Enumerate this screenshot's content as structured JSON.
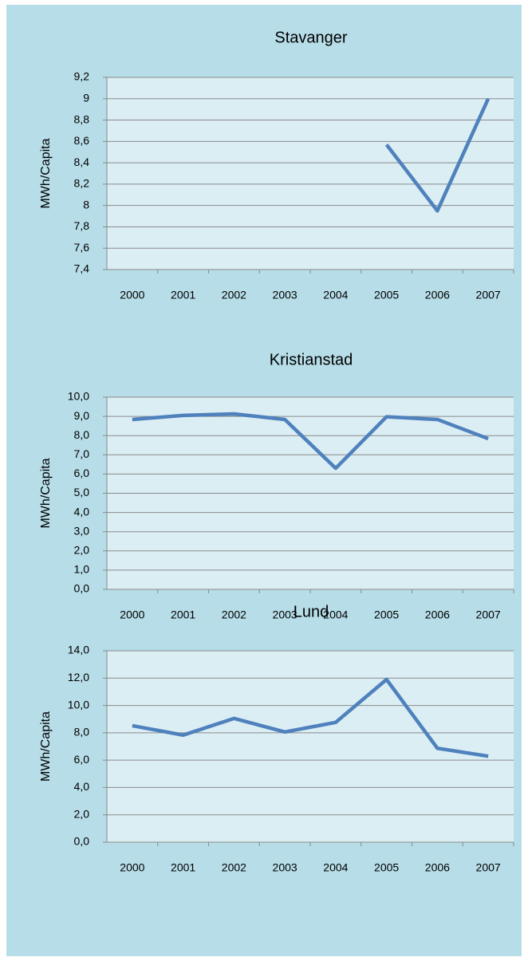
{
  "chart_data": [
    {
      "type": "line",
      "title": "Stavanger",
      "y_label": "MWh/Capita",
      "color": "#4f81bd",
      "grid": true,
      "categories": [
        "2000",
        "2001",
        "2002",
        "2003",
        "2004",
        "2005",
        "2006",
        "2007"
      ],
      "values": [
        null,
        null,
        null,
        null,
        null,
        8.57,
        7.95,
        9.0
      ],
      "ylim": [
        7.4,
        9.2
      ],
      "yticks": [
        {
          "value": 7.4,
          "label": "7,4"
        },
        {
          "value": 7.6,
          "label": "7,6"
        },
        {
          "value": 7.8,
          "label": "7,8"
        },
        8,
        {
          "value": 8.2,
          "label": "8,2"
        },
        {
          "value": 8.4,
          "label": "8,4"
        },
        {
          "value": 8.6,
          "label": "8,6"
        },
        {
          "value": 8.8,
          "label": "8,8"
        },
        9,
        {
          "value": 9.2,
          "label": "9,2"
        }
      ]
    },
    {
      "type": "line",
      "title": "Kristianstad",
      "y_label": "MWh/Capita",
      "color": "#4f81bd",
      "grid": true,
      "categories": [
        "2000",
        "2001",
        "2002",
        "2003",
        "2004",
        "2005",
        "2006",
        "2007"
      ],
      "values": [
        8.84,
        9.05,
        9.13,
        8.84,
        6.3,
        8.98,
        8.84,
        7.84
      ],
      "ylim": [
        0,
        10
      ],
      "yticks": [
        {
          "value": 0,
          "label": "0,0"
        },
        {
          "value": 1,
          "label": "1,0"
        },
        {
          "value": 2,
          "label": "2,0"
        },
        {
          "value": 3,
          "label": "3,0"
        },
        {
          "value": 4,
          "label": "4,0"
        },
        {
          "value": 5,
          "label": "5,0"
        },
        {
          "value": 6,
          "label": "6,0"
        },
        {
          "value": 7,
          "label": "7,0"
        },
        {
          "value": 8,
          "label": "8,0"
        },
        {
          "value": 9,
          "label": "9,0"
        },
        {
          "value": 10,
          "label": "10,0"
        }
      ]
    },
    {
      "type": "line",
      "title": "Lund",
      "y_label": "MWh/Capita",
      "color": "#4f81bd",
      "grid": true,
      "categories": [
        "2000",
        "2001",
        "2002",
        "2003",
        "2004",
        "2005",
        "2006",
        "2007"
      ],
      "values": [
        8.52,
        7.83,
        9.05,
        8.06,
        8.76,
        11.9,
        6.87,
        6.29
      ],
      "ylim": [
        0,
        14
      ],
      "yticks": [
        {
          "value": 0,
          "label": "0,0"
        },
        {
          "value": 2,
          "label": "2,0"
        },
        {
          "value": 4,
          "label": "4,0"
        },
        {
          "value": 6,
          "label": "6,0"
        },
        {
          "value": 8,
          "label": "8,0"
        },
        {
          "value": 10,
          "label": "10,0"
        },
        {
          "value": 12,
          "label": "12,0"
        },
        {
          "value": 14,
          "label": "14,0"
        }
      ]
    }
  ]
}
